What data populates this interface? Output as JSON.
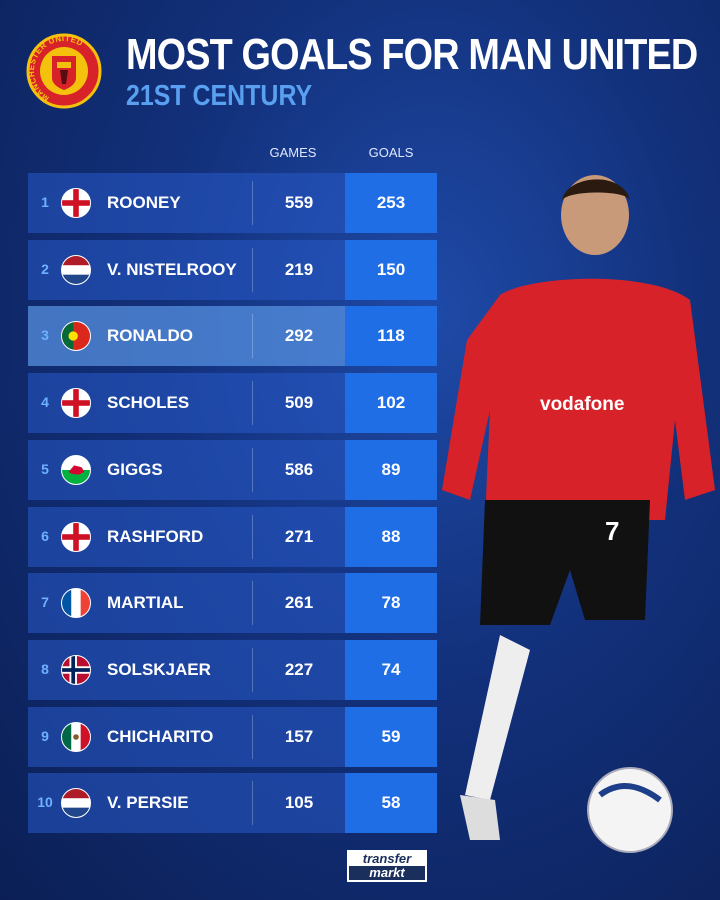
{
  "header": {
    "title": "MOST GOALS FOR MAN UNITED",
    "subtitle": "21ST CENTURY",
    "crest_text": "MANCHESTER UNITED"
  },
  "columns": {
    "games": "GAMES",
    "goals": "GOALS"
  },
  "rows": [
    {
      "rank": "1",
      "flag": "england",
      "name": "ROONEY",
      "games": "559",
      "goals": "253"
    },
    {
      "rank": "2",
      "flag": "netherlands",
      "name": "V. NISTELROOY",
      "games": "219",
      "goals": "150"
    },
    {
      "rank": "3",
      "flag": "portugal",
      "name": "RONALDO",
      "games": "292",
      "goals": "118",
      "highlighted": true
    },
    {
      "rank": "4",
      "flag": "england",
      "name": "SCHOLES",
      "games": "509",
      "goals": "102"
    },
    {
      "rank": "5",
      "flag": "wales",
      "name": "GIGGS",
      "games": "586",
      "goals": "89"
    },
    {
      "rank": "6",
      "flag": "england",
      "name": "RASHFORD",
      "games": "271",
      "goals": "88"
    },
    {
      "rank": "7",
      "flag": "france",
      "name": "MARTIAL",
      "games": "261",
      "goals": "78"
    },
    {
      "rank": "8",
      "flag": "norway",
      "name": "SOLSKJAER",
      "games": "227",
      "goals": "74"
    },
    {
      "rank": "9",
      "flag": "mexico",
      "name": "CHICHARITO",
      "games": "157",
      "goals": "59"
    },
    {
      "rank": "10",
      "flag": "netherlands",
      "name": "V. PERSIE",
      "games": "105",
      "goals": "58"
    }
  ],
  "player_photo": {
    "shirt_sponsor": "vodafone",
    "shirt_number": "7"
  },
  "footer": {
    "logo_line1": "transfer",
    "logo_line2": "markt"
  },
  "colors": {
    "goals_box": "#1f6ee6",
    "subtitle": "#5aa0f0",
    "shirt": "#d8222a"
  }
}
